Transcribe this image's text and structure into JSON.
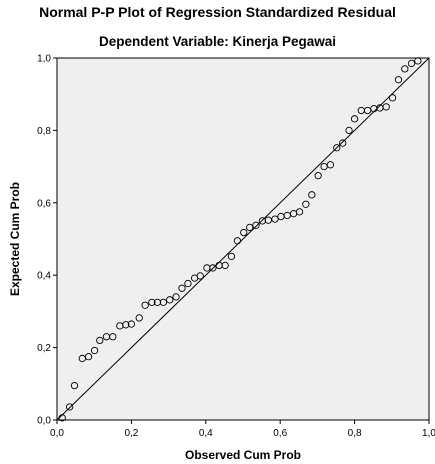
{
  "chart_data": {
    "type": "scatter",
    "title": "Normal P-P Plot of Regression Standardized Residual",
    "subtitle": "Dependent Variable: Kinerja Pegawai",
    "xlabel": "Observed Cum Prob",
    "ylabel": "Expected Cum Prob",
    "xlim": [
      0,
      1
    ],
    "ylim": [
      0,
      1
    ],
    "x_tick_labels": [
      "0,0",
      "0,2",
      "0,4",
      "0,6",
      "0,8",
      "1,0"
    ],
    "y_tick_labels": [
      "0,0",
      "0,2",
      "0,4",
      "0,6",
      "0,8",
      "1,0"
    ],
    "reference_line": {
      "from": [
        0,
        0
      ],
      "to": [
        1,
        1
      ]
    },
    "grid": false,
    "plot_background": "#efefef",
    "marker": "open-circle",
    "series": [
      {
        "points": [
          [
            0.014,
            0.006
          ],
          [
            0.034,
            0.036
          ],
          [
            0.047,
            0.095
          ],
          [
            0.068,
            0.17
          ],
          [
            0.085,
            0.175
          ],
          [
            0.101,
            0.192
          ],
          [
            0.115,
            0.22
          ],
          [
            0.133,
            0.23
          ],
          [
            0.15,
            0.23
          ],
          [
            0.169,
            0.26
          ],
          [
            0.185,
            0.263
          ],
          [
            0.2,
            0.265
          ],
          [
            0.221,
            0.282
          ],
          [
            0.237,
            0.317
          ],
          [
            0.255,
            0.325
          ],
          [
            0.27,
            0.325
          ],
          [
            0.286,
            0.325
          ],
          [
            0.303,
            0.332
          ],
          [
            0.32,
            0.34
          ],
          [
            0.336,
            0.364
          ],
          [
            0.352,
            0.377
          ],
          [
            0.37,
            0.392
          ],
          [
            0.385,
            0.398
          ],
          [
            0.403,
            0.42
          ],
          [
            0.419,
            0.42
          ],
          [
            0.436,
            0.427
          ],
          [
            0.452,
            0.427
          ],
          [
            0.469,
            0.452
          ],
          [
            0.485,
            0.495
          ],
          [
            0.502,
            0.518
          ],
          [
            0.518,
            0.532
          ],
          [
            0.535,
            0.538
          ],
          [
            0.552,
            0.55
          ],
          [
            0.568,
            0.552
          ],
          [
            0.586,
            0.555
          ],
          [
            0.602,
            0.562
          ],
          [
            0.619,
            0.565
          ],
          [
            0.636,
            0.57
          ],
          [
            0.652,
            0.575
          ],
          [
            0.669,
            0.596
          ],
          [
            0.685,
            0.622
          ],
          [
            0.702,
            0.675
          ],
          [
            0.718,
            0.7
          ],
          [
            0.735,
            0.705
          ],
          [
            0.752,
            0.752
          ],
          [
            0.768,
            0.765
          ],
          [
            0.785,
            0.8
          ],
          [
            0.8,
            0.832
          ],
          [
            0.818,
            0.855
          ],
          [
            0.835,
            0.855
          ],
          [
            0.852,
            0.86
          ],
          [
            0.868,
            0.862
          ],
          [
            0.885,
            0.865
          ],
          [
            0.902,
            0.89
          ],
          [
            0.918,
            0.94
          ],
          [
            0.935,
            0.97
          ],
          [
            0.953,
            0.985
          ],
          [
            0.97,
            0.992
          ]
        ]
      }
    ]
  }
}
